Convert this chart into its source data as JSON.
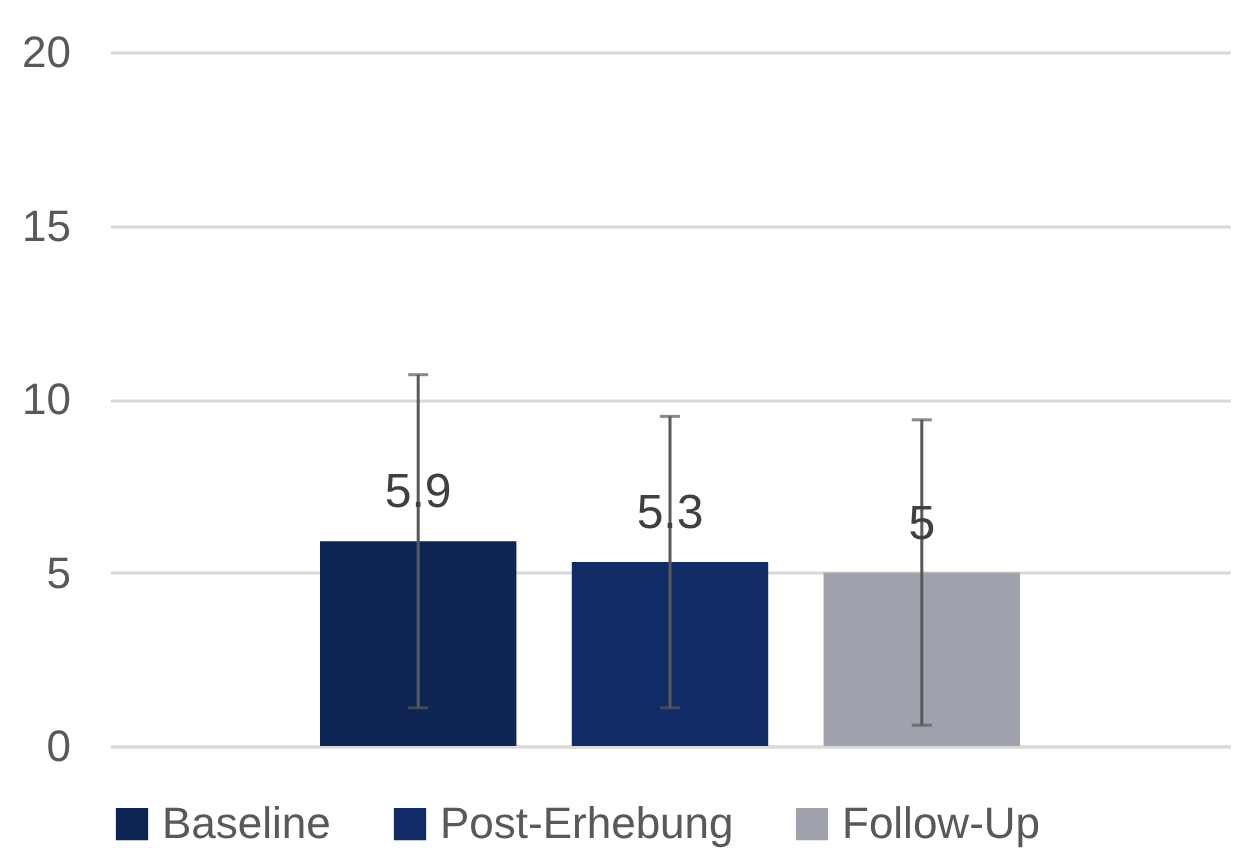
{
  "chart_data": {
    "type": "bar",
    "categories": [
      null
    ],
    "series": [
      {
        "name": "Baseline",
        "color": "#0e2452",
        "values": [
          5.9
        ],
        "errors": [
          4.8
        ]
      },
      {
        "name": "Post-Erhebung",
        "color": "#112b66",
        "values": [
          5.3
        ],
        "errors": [
          4.2
        ]
      },
      {
        "name": "Follow-Up",
        "color": "#a0a3ae",
        "values": [
          5
        ],
        "errors": [
          4.4
        ]
      }
    ],
    "ylim": [
      0,
      20
    ],
    "yticks": [
      0,
      5,
      10,
      15,
      20
    ],
    "grid": "y",
    "legend": "bottom",
    "data_labels": true
  }
}
